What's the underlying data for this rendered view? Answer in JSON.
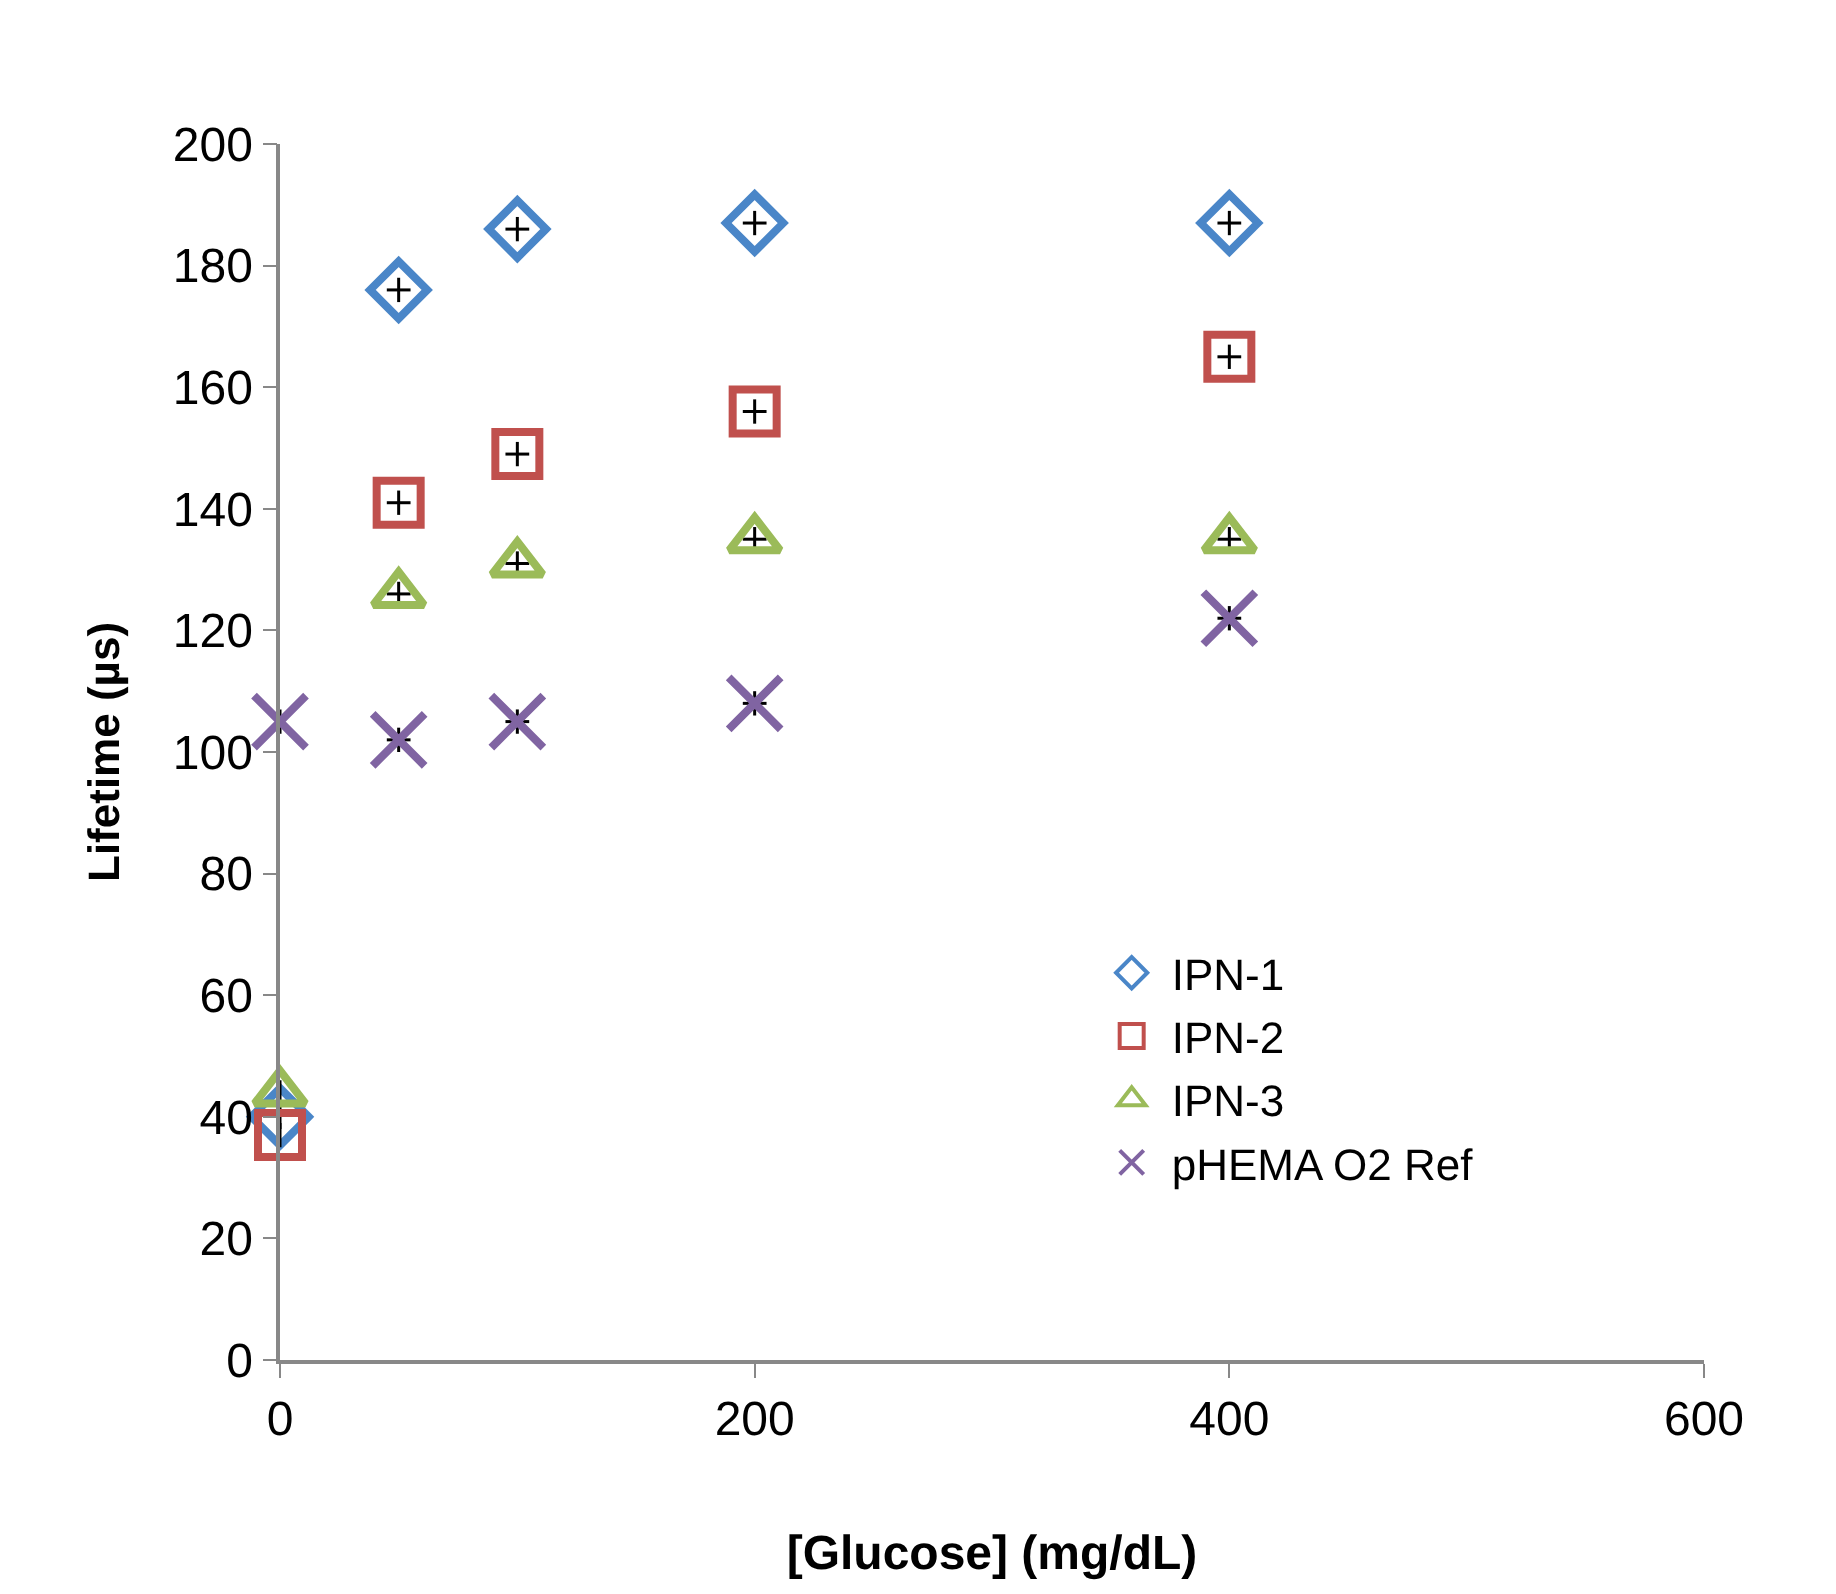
{
  "chart_data": {
    "type": "scatter",
    "xlabel": "[Glucose] (mg/dL)",
    "ylabel": "Lifetime (µs)",
    "x": [
      0,
      50,
      100,
      200,
      400
    ],
    "series": [
      {
        "name": "IPN-1",
        "color": "#4a86c8",
        "marker": "diamond",
        "values": [
          40,
          176,
          186,
          187,
          187
        ],
        "errors": [
          2,
          2,
          2,
          2,
          2
        ],
        "xerrors": [
          null,
          5,
          5,
          5,
          5
        ]
      },
      {
        "name": "IPN-2",
        "color": "#c0504d",
        "marker": "square",
        "values": [
          37,
          141,
          149,
          156,
          165
        ],
        "errors": [
          2,
          2,
          2,
          2,
          2
        ],
        "xerrors": [
          null,
          5,
          5,
          5,
          5
        ]
      },
      {
        "name": "IPN-3",
        "color": "#9bbb59",
        "marker": "triangle",
        "values": [
          44,
          126,
          131,
          135,
          135
        ],
        "errors": [
          2,
          2,
          2,
          2,
          2
        ],
        "xerrors": [
          null,
          5,
          5,
          5,
          5
        ]
      },
      {
        "name": "pHEMA O2 Ref",
        "color": "#8064a2",
        "marker": "cross",
        "values": [
          105,
          102,
          105,
          108,
          122
        ],
        "errors": [
          2,
          2,
          2,
          2,
          2
        ],
        "xerrors": [
          null,
          5,
          5,
          5,
          5
        ]
      }
    ],
    "xlim": [
      0,
      600
    ],
    "xticks": [
      0,
      200,
      400,
      600
    ],
    "ylim": [
      0,
      200
    ],
    "yticks": [
      0,
      20,
      40,
      60,
      80,
      100,
      120,
      140,
      160,
      180,
      200
    ],
    "legend": "right"
  }
}
